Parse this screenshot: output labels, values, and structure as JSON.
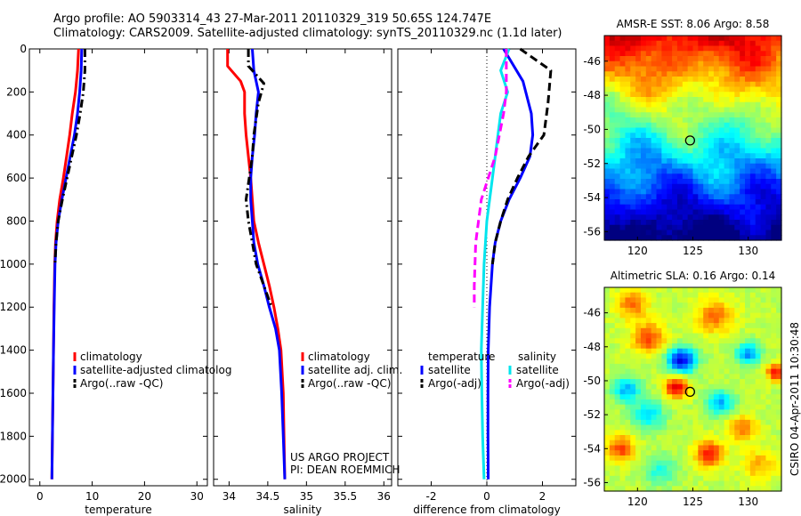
{
  "header": {
    "line1": "Argo profile: AO 5903314_43 27-Mar-2011 20110329_319 50.65S 124.747E",
    "line2": "Climatology: CARS2009. Satellite-adjusted climatology: synTS_20110329.nc (1.1d later)"
  },
  "credits": {
    "project": "US ARGO PROJECT",
    "pi": "PI: DEAN ROEMMICH",
    "stamp": "CSIRO 04-Apr-2011 10:30:48"
  },
  "colors": {
    "climatology": "#ff0000",
    "satellite": "#0000ff",
    "argo": "#000000",
    "sat_diff_salinity": "#00e5ee",
    "argo_diff_salinity": "#ff00ff"
  },
  "chart_data": [
    {
      "id": "temperature",
      "type": "line",
      "xlabel": "temperature",
      "ylabel": "",
      "xlim": [
        -2,
        32
      ],
      "ylim": [
        0,
        2030
      ],
      "y_inverted": true,
      "xticks": [
        0,
        10,
        20,
        30
      ],
      "yticks": [
        0,
        200,
        400,
        600,
        800,
        1000,
        1200,
        1400,
        1600,
        1800,
        2000
      ],
      "legend": {
        "placement": "lower-middle",
        "entries": [
          "climatology",
          "satellite-adjusted climatolog",
          "Argo(..raw -QC)"
        ]
      },
      "series": [
        {
          "name": "climatology",
          "style": "solid",
          "color": "#ff0000",
          "points": [
            [
              7.4,
              0
            ],
            [
              7.2,
              100
            ],
            [
              6.8,
              200
            ],
            [
              6.2,
              300
            ],
            [
              5.7,
              400
            ],
            [
              5.1,
              500
            ],
            [
              4.5,
              600
            ],
            [
              3.8,
              700
            ],
            [
              3.3,
              800
            ],
            [
              3.0,
              900
            ],
            [
              2.85,
              1000
            ],
            [
              2.7,
              1200
            ],
            [
              2.6,
              1400
            ],
            [
              2.5,
              1600
            ],
            [
              2.4,
              1800
            ],
            [
              2.3,
              2000
            ]
          ]
        },
        {
          "name": "satellite-adjusted climatolog",
          "style": "solid",
          "color": "#0000ff",
          "points": [
            [
              8.0,
              0
            ],
            [
              7.9,
              100
            ],
            [
              7.6,
              200
            ],
            [
              7.2,
              300
            ],
            [
              6.6,
              400
            ],
            [
              5.8,
              500
            ],
            [
              5.0,
              600
            ],
            [
              4.2,
              700
            ],
            [
              3.5,
              800
            ],
            [
              3.1,
              900
            ],
            [
              2.9,
              1000
            ],
            [
              2.75,
              1200
            ],
            [
              2.6,
              1400
            ],
            [
              2.5,
              1600
            ],
            [
              2.4,
              1800
            ],
            [
              2.3,
              2000
            ]
          ]
        },
        {
          "name": "Argo(..raw -QC)",
          "style": "dashdot",
          "color": "#000000",
          "points": [
            [
              8.6,
              0
            ],
            [
              8.6,
              100
            ],
            [
              8.3,
              200
            ],
            [
              7.7,
              300
            ],
            [
              7.0,
              400
            ],
            [
              6.1,
              500
            ],
            [
              5.2,
              600
            ],
            [
              4.3,
              700
            ],
            [
              3.5,
              800
            ],
            [
              3.1,
              900
            ],
            [
              2.9,
              1000
            ]
          ]
        }
      ]
    },
    {
      "id": "salinity",
      "type": "line",
      "xlabel": "salinity",
      "ylabel": "",
      "xlim": [
        33.8,
        36.1
      ],
      "ylim": [
        0,
        2030
      ],
      "y_inverted": true,
      "xticks": [
        34,
        34.5,
        35,
        35.5,
        36
      ],
      "xticklabels": [
        "34",
        "34.5",
        "35",
        "35.5",
        "36"
      ],
      "legend": {
        "placement": "lower-middle",
        "entries": [
          "climatology",
          "satellite adj. clim.",
          "Argo(..raw -QC)"
        ]
      },
      "series": [
        {
          "name": "climatology",
          "style": "solid",
          "color": "#ff0000",
          "points": [
            [
              33.98,
              0
            ],
            [
              33.98,
              80
            ],
            [
              34.15,
              150
            ],
            [
              34.2,
              200
            ],
            [
              34.2,
              300
            ],
            [
              34.22,
              400
            ],
            [
              34.25,
              500
            ],
            [
              34.28,
              600
            ],
            [
              34.3,
              700
            ],
            [
              34.32,
              800
            ],
            [
              34.38,
              900
            ],
            [
              34.45,
              1000
            ],
            [
              34.52,
              1100
            ],
            [
              34.58,
              1200
            ],
            [
              34.63,
              1300
            ],
            [
              34.67,
              1400
            ],
            [
              34.7,
              1600
            ],
            [
              34.71,
              1800
            ],
            [
              34.72,
              2000
            ]
          ]
        },
        {
          "name": "satellite adj. clim.",
          "style": "solid",
          "color": "#0000ff",
          "points": [
            [
              34.3,
              0
            ],
            [
              34.32,
              100
            ],
            [
              34.38,
              200
            ],
            [
              34.35,
              300
            ],
            [
              34.33,
              400
            ],
            [
              34.3,
              500
            ],
            [
              34.28,
              600
            ],
            [
              34.28,
              700
            ],
            [
              34.3,
              800
            ],
            [
              34.32,
              900
            ],
            [
              34.37,
              1000
            ],
            [
              34.45,
              1100
            ],
            [
              34.52,
              1200
            ],
            [
              34.6,
              1300
            ],
            [
              34.65,
              1400
            ],
            [
              34.68,
              1600
            ],
            [
              34.7,
              1800
            ],
            [
              34.72,
              2000
            ]
          ]
        },
        {
          "name": "Argo(..raw -QC)",
          "style": "dashdot",
          "color": "#000000",
          "points": [
            [
              34.25,
              0
            ],
            [
              34.25,
              80
            ],
            [
              34.45,
              160
            ],
            [
              34.38,
              250
            ],
            [
              34.32,
              400
            ],
            [
              34.3,
              500
            ],
            [
              34.26,
              600
            ],
            [
              34.22,
              700
            ],
            [
              34.25,
              800
            ],
            [
              34.3,
              900
            ],
            [
              34.35,
              1000
            ],
            [
              34.45,
              1100
            ],
            [
              34.55,
              1200
            ]
          ]
        }
      ]
    },
    {
      "id": "difference",
      "type": "line",
      "xlabel": "difference from climatology",
      "ylabel": "",
      "xlim": [
        -3.2,
        3.2
      ],
      "ylim": [
        0,
        2030
      ],
      "y_inverted": true,
      "xticks": [
        -2,
        0,
        2
      ],
      "zero_line": true,
      "legend": {
        "placement": "lower-middle",
        "groups": [
          {
            "title": "temperature",
            "entries": [
              "satellite",
              "Argo(-adj)"
            ]
          },
          {
            "title": "salinity",
            "entries": [
              "satellite",
              "Argo(-adj)"
            ]
          }
        ]
      },
      "series": [
        {
          "name": "satellite",
          "group": "temperature",
          "style": "solid",
          "color": "#0000ff",
          "points": [
            [
              0.6,
              0
            ],
            [
              1.3,
              150
            ],
            [
              1.6,
              300
            ],
            [
              1.65,
              400
            ],
            [
              1.55,
              500
            ],
            [
              1.2,
              600
            ],
            [
              0.8,
              700
            ],
            [
              0.5,
              800
            ],
            [
              0.3,
              900
            ],
            [
              0.2,
              1000
            ],
            [
              0.1,
              1200
            ],
            [
              0.05,
              1400
            ],
            [
              0.04,
              1600
            ],
            [
              0.04,
              1800
            ],
            [
              0.05,
              2000
            ]
          ]
        },
        {
          "name": "Argo(-adj)",
          "group": "temperature",
          "style": "dashed",
          "color": "#000000",
          "points": [
            [
              1.2,
              0
            ],
            [
              2.3,
              100
            ],
            [
              2.2,
              250
            ],
            [
              2.05,
              400
            ],
            [
              1.5,
              500
            ],
            [
              1.1,
              600
            ],
            [
              0.75,
              700
            ],
            [
              0.5,
              800
            ],
            [
              0.3,
              900
            ],
            [
              0.2,
              1000
            ]
          ]
        },
        {
          "name": "satellite",
          "group": "salinity",
          "style": "solid",
          "color": "#00e5ee",
          "points": [
            [
              0.8,
              0
            ],
            [
              0.5,
              100
            ],
            [
              0.75,
              200
            ],
            [
              0.5,
              300
            ],
            [
              0.4,
              400
            ],
            [
              0.2,
              600
            ],
            [
              0.0,
              800
            ],
            [
              -0.1,
              1000
            ],
            [
              -0.15,
              1200
            ],
            [
              -0.2,
              1400
            ],
            [
              -0.18,
              1600
            ],
            [
              -0.15,
              1800
            ],
            [
              -0.1,
              2000
            ]
          ]
        },
        {
          "name": "Argo(-adj)",
          "group": "salinity",
          "style": "dashed",
          "color": "#ff00ff",
          "points": [
            [
              0.7,
              0
            ],
            [
              0.7,
              200
            ],
            [
              0.6,
              300
            ],
            [
              0.3,
              500
            ],
            [
              -0.2,
              700
            ],
            [
              -0.4,
              900
            ],
            [
              -0.45,
              1100
            ],
            [
              -0.45,
              1200
            ]
          ]
        }
      ]
    },
    {
      "id": "sst_map",
      "type": "heatmap",
      "title": "AMSR-E SST: 8.06 Argo: 8.58",
      "xlim": [
        117,
        133
      ],
      "ylim": [
        -56.5,
        -44.5
      ],
      "xticks": [
        120,
        125,
        130
      ],
      "yticks": [
        -46,
        -48,
        -50,
        -52,
        -54,
        -56
      ],
      "marker": {
        "lon": 124.747,
        "lat": -50.65
      },
      "field": "sst"
    },
    {
      "id": "sla_map",
      "type": "heatmap",
      "title": "Altimetric SLA: 0.16 Argo: 0.14",
      "xlim": [
        117,
        133
      ],
      "ylim": [
        -56.5,
        -44.5
      ],
      "xticks": [
        120,
        125,
        130
      ],
      "yticks": [
        -46,
        -48,
        -50,
        -52,
        -54,
        -56
      ],
      "marker": {
        "lon": 124.747,
        "lat": -50.65
      },
      "field": "sla"
    }
  ]
}
